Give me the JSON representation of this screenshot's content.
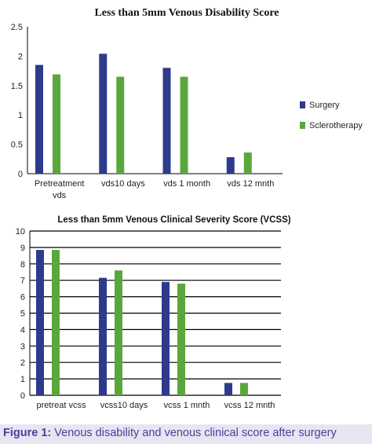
{
  "chart_data": [
    {
      "type": "bar",
      "title": "Less than 5mm Venous Disability Score",
      "categories": [
        [
          "Pretreatment",
          "vds"
        ],
        [
          "vds10 days"
        ],
        [
          "vds 1 month"
        ],
        [
          "vds 12 mnth"
        ]
      ],
      "series": [
        {
          "name": "Surgery",
          "color": "#2e3a8c",
          "values": [
            1.85,
            2.04,
            1.8,
            0.28
          ]
        },
        {
          "name": "Sclerotherapy",
          "color": "#5aa83c",
          "values": [
            1.69,
            1.65,
            1.65,
            0.36
          ]
        }
      ],
      "yticks": [
        "0",
        "0.5",
        "1",
        "1.5",
        "2",
        "2.5"
      ],
      "ylim": [
        0,
        2.5
      ],
      "grid": false,
      "legend": "right"
    },
    {
      "type": "bar",
      "title": "Less than 5mm Venous Clinical Severity Score (VCSS)",
      "categories": [
        [
          "pretreat vcss"
        ],
        [
          "vcss10 days"
        ],
        [
          "vcss 1 mnth"
        ],
        [
          "vcss 12 mnth"
        ]
      ],
      "series": [
        {
          "color": "#2e3a8c",
          "values": [
            8.85,
            7.15,
            6.9,
            0.75
          ]
        },
        {
          "color": "#5aa83c",
          "values": [
            8.85,
            7.6,
            6.8,
            0.75
          ]
        }
      ],
      "yticks": [
        "0",
        "1",
        "2",
        "3",
        "4",
        "5",
        "6",
        "7",
        "8",
        "9",
        "10"
      ],
      "ylim": [
        0,
        10
      ],
      "grid": true,
      "legend": "none"
    }
  ],
  "caption": {
    "label": "Figure 1:",
    "text": " Venous disability and venous clinical score after surgery"
  }
}
